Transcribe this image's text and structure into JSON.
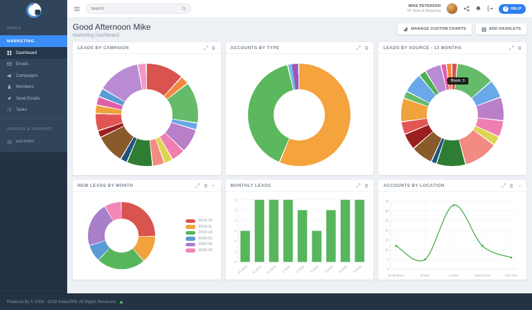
{
  "theme": {
    "accent": "#3b8df6",
    "help": "#2d7ff0",
    "sidebar_bg": "#30445a",
    "sidebar_dark": "#243244",
    "content_bg": "#edf0f4",
    "bar_green": "#57b65b",
    "line_green": "#4caf50",
    "status_green": "#52b75a"
  },
  "sidebar": {
    "logo_icon": "crm-logo-icon",
    "section_sales": "SALES",
    "section_marketing": "MARKETING",
    "menu": [
      {
        "icon": "dashboard-icon",
        "label": "Dashboard",
        "active": true
      },
      {
        "icon": "emails-icon",
        "label": "Emails",
        "active": false
      },
      {
        "icon": "campaigns-icon",
        "label": "Campaigns",
        "active": false
      },
      {
        "icon": "members-icon",
        "label": "Members",
        "active": false
      },
      {
        "icon": "send-emails-icon",
        "label": "Send Emails",
        "active": false
      },
      {
        "icon": "tasks-icon",
        "label": "Tasks",
        "active": false
      }
    ],
    "section_service": "SERVICE & SUPPORT",
    "history_label": "HISTORY",
    "history_icon": "clock-icon"
  },
  "topbar": {
    "menu_icon": "hamburger-icon",
    "search_placeholder": "Search",
    "search_icon": "search-icon",
    "user": {
      "name": "MIKE PETERSON",
      "role": "VP Sales & Marketing"
    },
    "icons": [
      "share-icon",
      "bell-icon",
      "logout-icon"
    ],
    "help_label": "HELP",
    "help_icon": "question-icon"
  },
  "header": {
    "greeting": "Good Afternoon Mike",
    "subtitle": "Marketing Dashboard",
    "buttons": [
      {
        "icon": "pie-chart-icon",
        "label": "MANAGE CUSTOM CHARTS"
      },
      {
        "icon": "grid-icon",
        "label": "ADD DASHLETS"
      }
    ]
  },
  "footer": {
    "text": "Powered By © 2004 - 2019 SuiteCRM. All Rights Reserved.",
    "status_icon": "status-dot"
  },
  "chart_data": [
    {
      "type": "donut",
      "title": "LEADS BY CAMPAIGN",
      "segments": [
        {
          "color": "#d9534f",
          "value": 11
        },
        {
          "color": "#f0883f",
          "value": 2.5
        },
        {
          "color": "#66bb6a",
          "value": 12
        },
        {
          "color": "#6aa9e9",
          "value": 2
        },
        {
          "color": "#ba7fc9",
          "value": 7
        },
        {
          "color": "#ef7fb1",
          "value": 4
        },
        {
          "color": "#ddd44f",
          "value": 2.5
        },
        {
          "color": "#f28b82",
          "value": 3.5
        },
        {
          "color": "#2e7d32",
          "value": 7.5
        },
        {
          "color": "#1f5480",
          "value": 2
        },
        {
          "color": "#8a5a2b",
          "value": 8.5
        },
        {
          "color": "#9c1f1f",
          "value": 2
        },
        {
          "color": "#e25555",
          "value": 5
        },
        {
          "color": "#f0a23c",
          "value": 2.5
        },
        {
          "color": "#e060a8",
          "value": 2.5
        },
        {
          "color": "#5b9bd5",
          "value": 2.5
        },
        {
          "color": "#b98bd4",
          "value": 12.5
        },
        {
          "color": "#f29ac4",
          "value": 2.5
        }
      ]
    },
    {
      "type": "donut",
      "title": "ACCOUNTS BY TYPE",
      "segments": [
        {
          "color": "#f5a33c",
          "value": 56.5
        },
        {
          "color": "#5cb85c",
          "value": 40
        },
        {
          "color": "#7ab8e8",
          "value": 1.2
        },
        {
          "color": "#9b59b6",
          "value": 2.3
        }
      ]
    },
    {
      "type": "donut",
      "title": "LEADS BY SOURCE - 12 MONTHS",
      "tooltip": "Blank: 3",
      "segments": [
        {
          "color": "#d9534f",
          "value": 1.5
        },
        {
          "color": "#66bb6a",
          "value": 10.5
        },
        {
          "color": "#6aa9e9",
          "value": 5
        },
        {
          "color": "#ba7fc9",
          "value": 6.5
        },
        {
          "color": "#ef7fb1",
          "value": 4.5
        },
        {
          "color": "#ddd44f",
          "value": 2.5
        },
        {
          "color": "#f28b82",
          "value": 9.5
        },
        {
          "color": "#2e7d32",
          "value": 8
        },
        {
          "color": "#1f5480",
          "value": 1.5
        },
        {
          "color": "#8a5a2b",
          "value": 6
        },
        {
          "color": "#9c1f1f",
          "value": 4.5
        },
        {
          "color": "#e25555",
          "value": 3.5
        },
        {
          "color": "#f0a23c",
          "value": 6.5
        },
        {
          "color": "#66bb6a",
          "value": 2
        },
        {
          "color": "#6aa9e9",
          "value": 5.5
        },
        {
          "color": "#4caf50",
          "value": 2
        },
        {
          "color": "#b98bd4",
          "value": 4.5
        },
        {
          "color": "#e060a8",
          "value": 1.5
        },
        {
          "color": "#f0883f",
          "value": 1.5
        }
      ]
    },
    {
      "type": "donut",
      "title": "NEW LEADS BY MONTH",
      "legend_position": "right",
      "segments": [
        {
          "label": "2019-10",
          "color": "#d9534f",
          "value": 25
        },
        {
          "label": "2019-11",
          "color": "#f0a23c",
          "value": 13
        },
        {
          "label": "2019-12",
          "color": "#57b65b",
          "value": 23
        },
        {
          "label": "2020-01",
          "color": "#5b9bd5",
          "value": 8
        },
        {
          "label": "2020-02",
          "color": "#a87fc9",
          "value": 21
        },
        {
          "label": "2020-03",
          "color": "#f287b7",
          "value": 8
        }
      ]
    },
    {
      "type": "bar",
      "title": "MONTHLY LEADS",
      "categories": [
        "10-2019",
        "11-2019",
        "12-2019",
        "1-2020",
        "2-2020",
        "3-2020",
        "4-2020",
        "5-2020",
        "6-2020"
      ],
      "values": [
        3,
        6,
        6,
        6,
        5,
        3,
        5,
        6,
        6
      ],
      "color": "#57b65b",
      "ylim": [
        0,
        6
      ],
      "yticks": [
        0,
        1,
        2,
        3,
        4,
        5,
        6
      ],
      "grid": true
    },
    {
      "type": "line",
      "title": "ACCOUNTS BY LOCATION",
      "categories": [
        "Birmingham",
        "Bristol",
        "London",
        "Manchester",
        "New York"
      ],
      "values": [
        12,
        5,
        33,
        12,
        6
      ],
      "color": "#4caf50",
      "ylim": [
        0,
        35
      ],
      "yticks": [
        0,
        5,
        10,
        15,
        20,
        25,
        30,
        35
      ],
      "grid": true
    }
  ]
}
